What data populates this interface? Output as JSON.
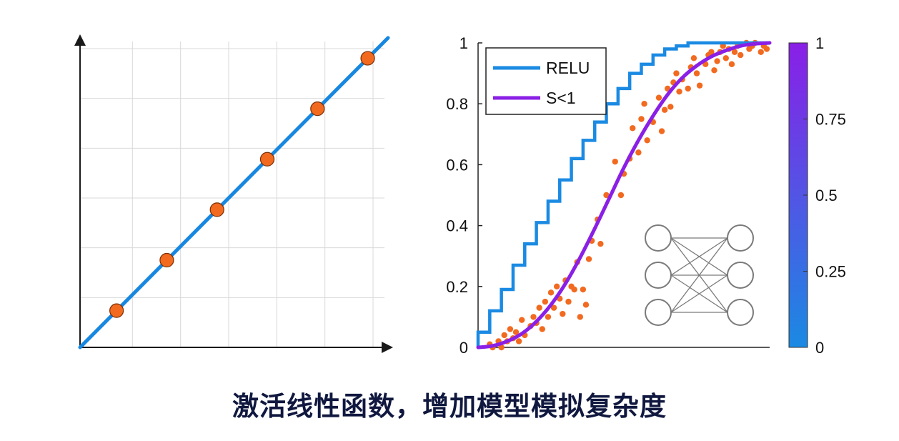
{
  "caption": "激活线性函数，增加模型模拟复杂度",
  "colors": {
    "line_blue": "#1787e0",
    "point_orange": "#f26a1f",
    "relu_blue": "#1a8ae3",
    "sigmoid_purple": "#8a1fe6",
    "scatter_orange": "#f26a1f",
    "grid": "#d9d9d9",
    "network": "#7a7a7a"
  },
  "chart_data": [
    {
      "type": "scatter",
      "title": "",
      "xlabel": "",
      "ylabel": "",
      "grid": true,
      "tick_labels": false,
      "xlim": [
        0,
        1
      ],
      "ylim": [
        0,
        1
      ],
      "line": {
        "x": [
          0,
          1
        ],
        "y": [
          0,
          1
        ]
      },
      "points": {
        "x": [
          0.12,
          0.285,
          0.45,
          0.615,
          0.78,
          0.945
        ],
        "y": [
          0.12,
          0.285,
          0.45,
          0.615,
          0.78,
          0.945
        ]
      }
    },
    {
      "type": "line",
      "title": "",
      "xlabel": "",
      "ylabel": "",
      "grid": false,
      "xlim": [
        0,
        1
      ],
      "ylim": [
        0,
        1
      ],
      "y_ticks": [
        "0",
        "0.2",
        "0.4",
        "0.6",
        "0.8",
        "1"
      ],
      "legend": {
        "position": "top-left",
        "entries": [
          "RELU",
          "S<1"
        ]
      },
      "series": [
        {
          "name": "RELU",
          "kind": "step",
          "x": [
            0,
            0.04,
            0.08,
            0.12,
            0.16,
            0.2,
            0.24,
            0.28,
            0.32,
            0.36,
            0.4,
            0.44,
            0.48,
            0.52,
            0.56,
            0.6,
            0.64,
            0.68,
            0.72,
            0.76,
            0.8,
            0.84,
            0.88,
            0.92,
            0.96,
            1.0
          ],
          "y": [
            0.05,
            0.12,
            0.19,
            0.27,
            0.34,
            0.41,
            0.48,
            0.55,
            0.62,
            0.68,
            0.74,
            0.8,
            0.85,
            0.9,
            0.93,
            0.96,
            0.98,
            0.99,
            1.0,
            1.0,
            1.0,
            1.0,
            1.0,
            1.0,
            1.0,
            1.0
          ]
        },
        {
          "name": "S<1",
          "kind": "curve",
          "x": [
            0,
            0.05,
            0.1,
            0.15,
            0.2,
            0.25,
            0.3,
            0.35,
            0.4,
            0.45,
            0.5,
            0.55,
            0.6,
            0.65,
            0.7,
            0.75,
            0.8,
            0.85,
            0.9,
            0.95,
            1.0
          ],
          "y": [
            0.0,
            0.005,
            0.02,
            0.045,
            0.085,
            0.14,
            0.21,
            0.295,
            0.39,
            0.49,
            0.59,
            0.68,
            0.76,
            0.83,
            0.885,
            0.925,
            0.955,
            0.975,
            0.99,
            0.997,
            1.0
          ]
        },
        {
          "name": "",
          "kind": "scatter",
          "x": [
            0.04,
            0.05,
            0.07,
            0.08,
            0.09,
            0.1,
            0.11,
            0.12,
            0.13,
            0.14,
            0.15,
            0.16,
            0.18,
            0.19,
            0.2,
            0.21,
            0.22,
            0.23,
            0.24,
            0.25,
            0.26,
            0.27,
            0.28,
            0.29,
            0.3,
            0.31,
            0.32,
            0.33,
            0.34,
            0.35,
            0.36,
            0.37,
            0.38,
            0.39,
            0.41,
            0.42,
            0.44,
            0.47,
            0.49,
            0.5,
            0.52,
            0.53,
            0.55,
            0.56,
            0.57,
            0.58,
            0.6,
            0.62,
            0.63,
            0.64,
            0.65,
            0.66,
            0.67,
            0.68,
            0.69,
            0.7,
            0.72,
            0.73,
            0.74,
            0.75,
            0.76,
            0.78,
            0.79,
            0.8,
            0.81,
            0.82,
            0.83,
            0.84,
            0.85,
            0.86,
            0.87,
            0.88,
            0.89,
            0.9,
            0.92,
            0.93,
            0.94,
            0.95,
            0.97,
            0.98,
            0.99
          ],
          "y": [
            0.01,
            0.0,
            0.02,
            0.0,
            0.04,
            0.02,
            0.06,
            0.03,
            0.05,
            0.02,
            0.09,
            0.04,
            0.07,
            0.1,
            0.08,
            0.13,
            0.06,
            0.15,
            0.1,
            0.18,
            0.13,
            0.2,
            0.16,
            0.11,
            0.22,
            0.15,
            0.2,
            0.19,
            0.28,
            0.1,
            0.19,
            0.14,
            0.29,
            0.35,
            0.42,
            0.34,
            0.5,
            0.61,
            0.5,
            0.57,
            0.62,
            0.72,
            0.64,
            0.75,
            0.8,
            0.68,
            0.74,
            0.82,
            0.71,
            0.78,
            0.85,
            0.79,
            0.87,
            0.9,
            0.84,
            0.88,
            0.85,
            0.92,
            0.95,
            0.9,
            0.86,
            0.93,
            0.96,
            0.97,
            0.91,
            0.94,
            0.97,
            0.99,
            0.95,
            0.98,
            0.93,
            0.97,
            0.99,
            0.96,
            1.0,
            0.98,
            0.99,
            1.0,
            0.97,
            0.99,
            0.98
          ]
        }
      ],
      "colorbar": {
        "range": [
          0,
          1
        ],
        "ticks": [
          "0",
          "0.25",
          "0.5",
          "0.75",
          "1"
        ],
        "colors": [
          "#1a8ae3",
          "#8a1fe6"
        ]
      }
    }
  ]
}
